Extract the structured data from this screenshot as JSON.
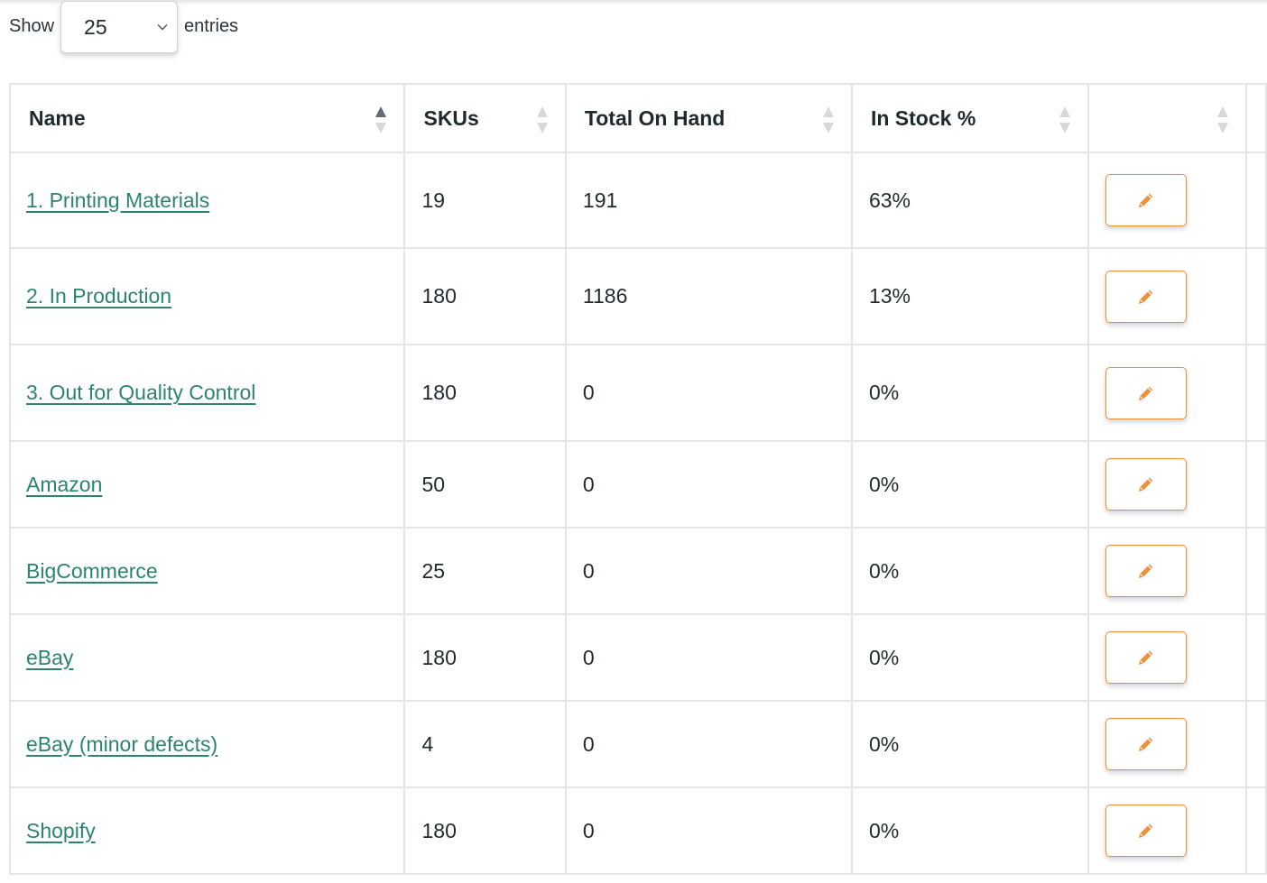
{
  "length_control": {
    "show_label": "Show",
    "selected": "25",
    "entries_label": "entries"
  },
  "table": {
    "columns": [
      {
        "label": "Name",
        "sort": "asc"
      },
      {
        "label": "SKUs",
        "sort": "none"
      },
      {
        "label": "Total On Hand",
        "sort": "none"
      },
      {
        "label": "In Stock %",
        "sort": "none"
      },
      {
        "label": "",
        "sort": "none"
      }
    ],
    "rows": [
      {
        "name": "1. Printing Materials",
        "skus": "19",
        "total_on_hand": "191",
        "in_stock": "63%"
      },
      {
        "name": "2. In Production",
        "skus": "180",
        "total_on_hand": "1186",
        "in_stock": "13%"
      },
      {
        "name": "3. Out for Quality Control",
        "skus": "180",
        "total_on_hand": "0",
        "in_stock": "0%"
      },
      {
        "name": "Amazon",
        "skus": "50",
        "total_on_hand": "0",
        "in_stock": "0%"
      },
      {
        "name": "BigCommerce",
        "skus": "25",
        "total_on_hand": "0",
        "in_stock": "0%"
      },
      {
        "name": "eBay",
        "skus": "180",
        "total_on_hand": "0",
        "in_stock": "0%"
      },
      {
        "name": "eBay (minor defects)",
        "skus": "4",
        "total_on_hand": "0",
        "in_stock": "0%"
      },
      {
        "name": "Shopify",
        "skus": "180",
        "total_on_hand": "0",
        "in_stock": "0%"
      }
    ],
    "action_icon": "pencil-icon"
  },
  "colors": {
    "link": "#2c8470",
    "accent": "#ee8f37",
    "border": "#e3e5e6",
    "sort_active": "#5f6b70",
    "sort_inactive": "#d6d9db"
  }
}
